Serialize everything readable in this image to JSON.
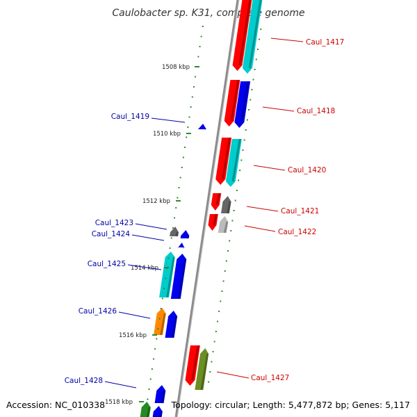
{
  "title": "Caulobacter sp. K31, complete genome",
  "footer": {
    "accession": "Accession: NC_010338",
    "summary": "Topology: circular; Length: 5,477,872 bp; Genes: 5,117"
  },
  "colors": {
    "backbone": "#8c8c8c",
    "tick": "#2e8b2e",
    "plus_strand_label": "#cc0000",
    "minus_strand_label": "#0000aa"
  },
  "tick_labels": [
    "1508 kbp",
    "1510 kbp",
    "1512 kbp",
    "1514 kbp",
    "1516 kbp",
    "1518 kbp"
  ],
  "gene_labels": {
    "plus": [
      "Caul_1417",
      "Caul_1418",
      "Caul_1420",
      "Caul_1421",
      "Caul_1422",
      "Caul_1427"
    ],
    "minus": [
      "Caul_1419",
      "Caul_1423",
      "Caul_1424",
      "Caul_1425",
      "Caul_1426",
      "Caul_1428"
    ]
  },
  "gene_colors": {
    "red": "#ff0000",
    "cyan": "#00cccc",
    "blue": "#0000ee",
    "grey": "#666666",
    "light-grey": "#bbbbbb",
    "orange": "#ff8800",
    "olive": "#6b8e23",
    "green": "#228b22"
  }
}
